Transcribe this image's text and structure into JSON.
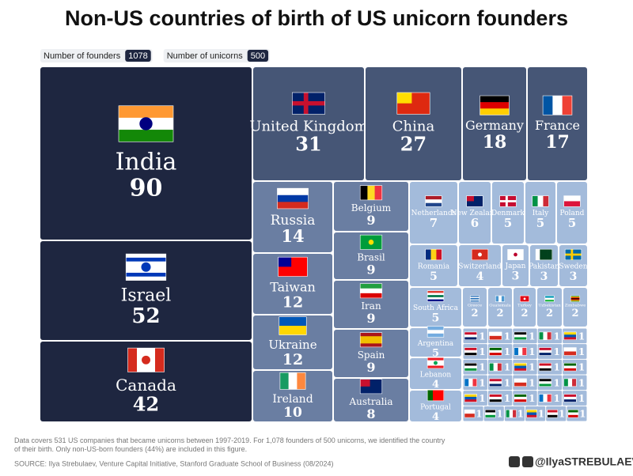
{
  "chart_data": {
    "type": "treemap",
    "title": "Non-US countries of birth of US unicorn founders",
    "badges": [
      {
        "label": "Number of founders",
        "value": 1078
      },
      {
        "label": "Number of unicorns",
        "value": 500
      }
    ],
    "categories": [
      "India",
      "United Kingdom",
      "China",
      "Germany",
      "France",
      "Israel",
      "Canada",
      "Russia",
      "Taiwan",
      "Ukraine",
      "Ireland",
      "Belgium",
      "Brasil",
      "Iran",
      "Spain",
      "Australia",
      "Netherlands",
      "New Zealand",
      "Denmark",
      "Italy",
      "Poland",
      "Romania",
      "Switzerland",
      "Japan",
      "Pakistan",
      "Sweden",
      "South Africa",
      "Greece",
      "Guatemala",
      "Turkey",
      "Uzbekistan",
      "Zimbabwe",
      "Argentina",
      "Lebanon",
      "Portugal",
      null,
      null,
      null,
      null,
      null,
      null,
      null,
      null,
      null,
      null,
      null,
      null,
      null,
      null,
      null,
      null,
      null,
      null,
      null,
      null,
      null,
      null,
      null,
      null,
      null,
      null,
      null,
      null,
      null,
      null,
      null
    ],
    "values": [
      90,
      31,
      27,
      18,
      17,
      52,
      42,
      14,
      12,
      12,
      10,
      9,
      9,
      9,
      9,
      8,
      7,
      6,
      5,
      5,
      5,
      5,
      4,
      3,
      3,
      3,
      5,
      2,
      2,
      2,
      2,
      2,
      5,
      4,
      4,
      1,
      1,
      1,
      1,
      1,
      1,
      1,
      1,
      1,
      1,
      1,
      1,
      1,
      1,
      1,
      1,
      1,
      1,
      1,
      1,
      1,
      1,
      1,
      1,
      1,
      1,
      1,
      1,
      1,
      1,
      1
    ],
    "tier_colors": [
      "#1e2640",
      "#465676",
      "#6a7ea2",
      "#a3bbdb"
    ],
    "footnote": "Data covers 531 US companies that became unicorns between 1997-2019. For 1,078 founders of 500 unicorns, we identified the country of their birth. Only non-US-born founders (44%) are included in this figure.",
    "source": "SOURCE: Ilya Strebulaev, Venture Capital Initiative, Stanford Graduate School of Business (08/2024)",
    "handle": "@IlyaSTREBULAEV"
  }
}
